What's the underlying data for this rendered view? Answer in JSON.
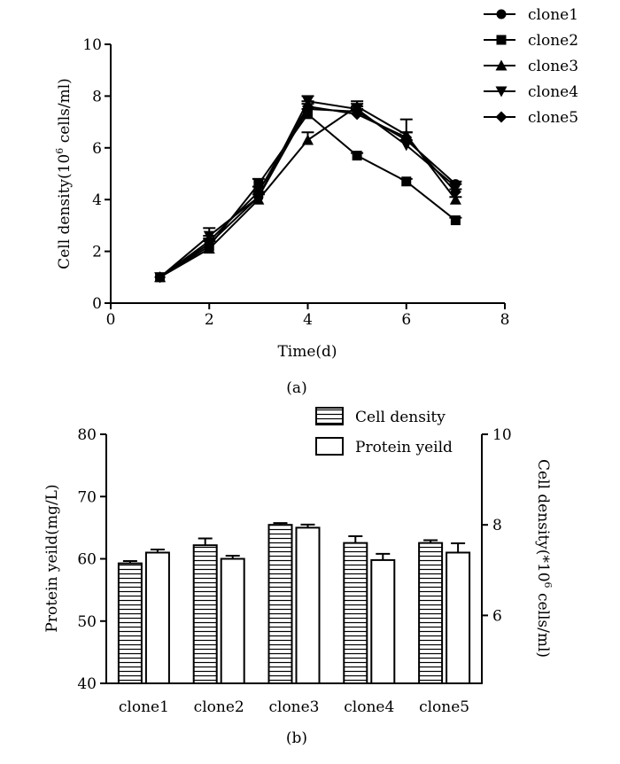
{
  "chart_data": [
    {
      "id": "a",
      "type": "line",
      "caption": "(a)",
      "xlabel": "Time(d)",
      "ylabel_pre": "Cell density(10",
      "ylabel_sup": "6",
      "ylabel_post": " cells/ml)",
      "xlim": [
        0,
        8
      ],
      "ylim": [
        0,
        10
      ],
      "xticks": [
        "0",
        "2",
        "4",
        "6",
        "8"
      ],
      "yticks": [
        "0",
        "2",
        "4",
        "6",
        "8",
        "10"
      ],
      "legend_position": "top-right",
      "x": [
        1,
        2,
        3,
        4,
        5,
        6,
        7
      ],
      "series": [
        {
          "name": "clone1",
          "marker": "circle",
          "values": [
            1.0,
            2.3,
            4.1,
            7.5,
            7.4,
            6.3,
            4.6
          ],
          "errors": [
            0,
            0.2,
            0.2,
            0.2,
            0.2,
            0.3,
            0.1
          ]
        },
        {
          "name": "clone2",
          "marker": "square",
          "values": [
            1.0,
            2.2,
            4.6,
            7.3,
            5.7,
            4.7,
            3.2
          ],
          "errors": [
            0,
            0.2,
            0.2,
            0.2,
            0.1,
            0.1,
            0.1
          ]
        },
        {
          "name": "clone3",
          "marker": "triangle-up",
          "values": [
            1.0,
            2.1,
            4.0,
            6.3,
            7.6,
            6.5,
            4.0
          ],
          "errors": [
            0,
            0.3,
            0.2,
            0.3,
            0.2,
            0.6,
            0.1
          ]
        },
        {
          "name": "clone4",
          "marker": "triangle-down",
          "values": [
            1.0,
            2.6,
            4.1,
            7.8,
            7.5,
            6.1,
            4.5
          ],
          "errors": [
            0,
            0.3,
            0.2,
            0.2,
            0.2,
            0.2,
            0.1
          ]
        },
        {
          "name": "clone5",
          "marker": "diamond",
          "values": [
            1.0,
            2.4,
            4.3,
            7.6,
            7.3,
            6.4,
            4.3
          ],
          "errors": [
            0,
            0.2,
            0.2,
            0.2,
            0.2,
            0.2,
            0.1
          ]
        }
      ]
    },
    {
      "id": "b",
      "type": "bar",
      "caption": "(b)",
      "categories": [
        "clone1",
        "clone2",
        "clone3",
        "clone4",
        "clone5"
      ],
      "ylabel_left": "Protein yeild(mg/L)",
      "ylabel_right_pre": "Cell density(*10",
      "ylabel_right_sup": "6",
      "ylabel_right_post": " cells/ml)",
      "ylim_left": [
        40,
        80
      ],
      "ylim_right": [
        4.5,
        10
      ],
      "yticks_left": [
        "40",
        "50",
        "60",
        "70",
        "80"
      ],
      "yticks_right": [
        "6",
        "8",
        "10"
      ],
      "legend_position": "top-right",
      "series": [
        {
          "name": "Cell density",
          "pattern": "horizontal-stripes",
          "axis": "right",
          "values": [
            7.15,
            7.55,
            8.0,
            7.6,
            7.6
          ],
          "errors": [
            0.05,
            0.15,
            0.04,
            0.15,
            0.06
          ]
        },
        {
          "name": "Protein yeild",
          "pattern": "solid",
          "axis": "left",
          "values": [
            61.0,
            60.0,
            65.0,
            59.8,
            61.0
          ],
          "errors": [
            0.5,
            0.5,
            0.5,
            1.0,
            1.5
          ]
        }
      ]
    }
  ]
}
